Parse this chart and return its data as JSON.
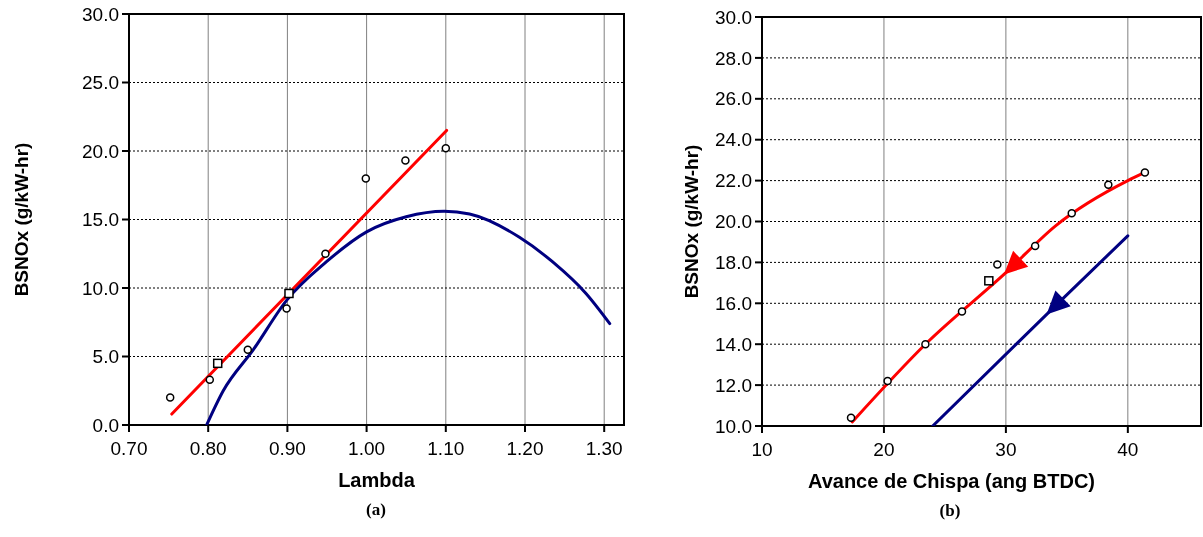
{
  "chart_data": [
    {
      "type": "scatter",
      "xlabel": "Lambda",
      "ylabel": "BSNOx (g/kW-hr)",
      "annotations": [
        "(a)"
      ],
      "xlim": [
        0.7,
        1.325
      ],
      "ylim": [
        0,
        30
      ],
      "xticks": [
        {
          "value": 0.7,
          "label": "0.70"
        },
        {
          "value": 0.8,
          "label": "0.80"
        },
        {
          "value": 0.9,
          "label": "0.90"
        },
        {
          "value": 1.0,
          "label": "1.00"
        },
        {
          "value": 1.1,
          "label": "1.10"
        },
        {
          "value": 1.2,
          "label": "1.20"
        },
        {
          "value": 1.3,
          "label": "1.30"
        }
      ],
      "yticks": [
        {
          "value": 0,
          "label": "0.0"
        },
        {
          "value": 5,
          "label": "5.0"
        },
        {
          "value": 10,
          "label": "10.0"
        },
        {
          "value": 15,
          "label": "15.0"
        },
        {
          "value": 20,
          "label": "20.0"
        },
        {
          "value": 25,
          "label": "25.0"
        },
        {
          "value": 30,
          "label": "30.0"
        }
      ],
      "grid": true,
      "series": [
        {
          "type": "line",
          "color": "#ff0000",
          "x": [
            0.754,
            1.101
          ],
          "values": [
            0.8,
            21.5
          ]
        },
        {
          "type": "line",
          "color": "#000080",
          "x": [
            0.798,
            0.819,
            0.857,
            0.899,
            0.949,
            1.0,
            1.05,
            1.098,
            1.13,
            1.193,
            1.235,
            1.277,
            1.307
          ],
          "values": [
            0,
            2.5,
            5.5,
            9.1,
            11.9,
            14.1,
            15.2,
            15.6,
            15.4,
            13.7,
            11.9,
            9.6,
            7.4
          ]
        },
        {
          "color": "#000000",
          "marker": "circle",
          "x": [
            0.752,
            0.802,
            0.85,
            0.899,
            0.948,
            0.999,
            1.049,
            1.1
          ],
          "values": [
            2.0,
            3.3,
            5.5,
            8.5,
            12.5,
            18.0,
            19.3,
            20.2
          ]
        },
        {
          "color": "#000000",
          "marker": "square",
          "x": [
            0.812,
            0.902
          ],
          "values": [
            4.5,
            9.6
          ]
        }
      ]
    },
    {
      "type": "scatter",
      "xlabel": "Avance de Chispa (ang BTDC)",
      "ylabel": "BSNOx (g/kW-hr)",
      "annotations": [
        "(b)"
      ],
      "xlim": [
        10,
        46
      ],
      "ylim": [
        10,
        30
      ],
      "xticks": [
        10,
        20,
        30,
        40
      ],
      "yticks": [
        {
          "value": 10,
          "label": "10.0"
        },
        {
          "value": 12,
          "label": "12.0"
        },
        {
          "value": 14,
          "label": "14.0"
        },
        {
          "value": 16,
          "label": "16.0"
        },
        {
          "value": 18,
          "label": "18.0"
        },
        {
          "value": 20,
          "label": "20.0"
        },
        {
          "value": 22,
          "label": "22.0"
        },
        {
          "value": 24,
          "label": "24.0"
        },
        {
          "value": 26,
          "label": "26.0"
        },
        {
          "value": 28,
          "label": "28.0"
        },
        {
          "value": 30,
          "label": "30.0"
        }
      ],
      "grid": true,
      "series": [
        {
          "type": "line",
          "color": "#ff0000",
          "x": [
            17.4,
            23.4,
            30.0,
            34.1,
            40.0,
            41.4
          ],
          "values": [
            10.2,
            14.0,
            17.5,
            19.8,
            22.0,
            22.4
          ]
        },
        {
          "type": "line",
          "color": "#000080",
          "x": [
            24.0,
            34.1,
            40.0
          ],
          "values": [
            10.0,
            15.9,
            19.3
          ]
        },
        {
          "color": "#000000",
          "marker": "circle",
          "x": [
            17.3,
            20.3,
            23.4,
            26.4,
            29.3,
            32.4,
            35.4,
            38.4,
            41.4
          ],
          "values": [
            10.4,
            12.2,
            14.0,
            15.6,
            17.9,
            18.8,
            20.4,
            21.8,
            22.4
          ]
        },
        {
          "color": "#000000",
          "marker": "square",
          "x": [
            28.6
          ],
          "values": [
            17.1
          ]
        }
      ]
    }
  ]
}
